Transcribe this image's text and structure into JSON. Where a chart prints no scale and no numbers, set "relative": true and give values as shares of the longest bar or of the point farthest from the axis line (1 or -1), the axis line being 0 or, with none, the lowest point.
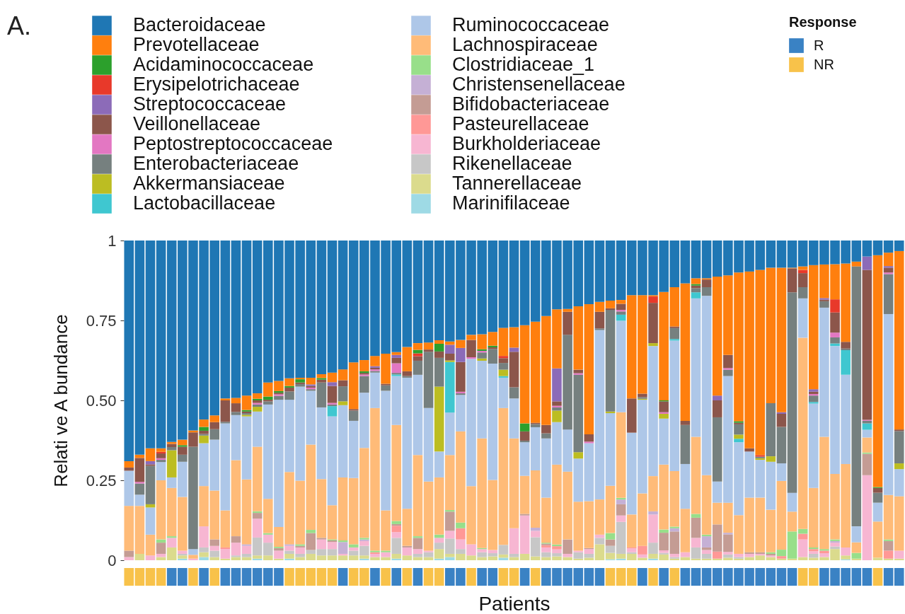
{
  "chart_data": [
    {
      "type": "bar",
      "title": "A.",
      "ylabel": "Relati ve A bundance",
      "stacked": true,
      "legend": "top",
      "tick_labels": "y",
      "ylim": [
        0,
        1
      ],
      "yticks": [
        0,
        0.25,
        {
          "value": 0.5,
          "label": "0.50"
        },
        0.75,
        1
      ],
      "categories": [
        null,
        null,
        null,
        null,
        null,
        null,
        null,
        null,
        null,
        null,
        null,
        null,
        null,
        null,
        null,
        null,
        null,
        null,
        null,
        null,
        null,
        null,
        null,
        null,
        null,
        null,
        null,
        null,
        null,
        null,
        null,
        null,
        null,
        null,
        null,
        null,
        null,
        null,
        null,
        null,
        null,
        null,
        null,
        null,
        null,
        null,
        null,
        null,
        null,
        null,
        null,
        null,
        null,
        null,
        null,
        null,
        null,
        null,
        null,
        null,
        null,
        null,
        null,
        null,
        null,
        null,
        null,
        null,
        null,
        null,
        null,
        null,
        null
      ],
      "series": [
        {
          "name": "Marinifilaceae",
          "color": "#9edae5",
          "values": [
            null,
            null,
            null,
            null,
            null,
            0.005,
            null,
            0.01,
            null,
            null,
            null,
            null,
            0.005,
            null,
            null,
            0.005,
            null,
            null,
            null,
            null,
            null,
            null,
            0.005,
            null,
            null,
            0.005,
            null,
            null,
            null,
            0.005,
            0.01,
            null,
            null,
            null,
            null,
            0.008,
            null,
            null,
            null,
            null,
            null,
            null,
            null,
            null,
            null,
            0.003,
            0.005,
            null,
            null,
            0.005,
            null,
            null,
            null,
            null,
            null,
            null,
            null,
            null,
            null,
            null,
            null,
            null,
            null,
            null,
            null,
            null,
            null,
            0.003,
            null,
            null,
            null,
            null,
            null
          ]
        },
        {
          "name": "Tannerellaceae",
          "color": "#dbdb8d",
          "values": [
            null,
            0.02,
            null,
            0.01,
            0.04,
            0.01,
            null,
            0.015,
            0.01,
            0.005,
            0.01,
            0.01,
            0.01,
            0.015,
            0.005,
            0.015,
            0.01,
            0.02,
            0.015,
            0.015,
            0.015,
            0.015,
            0.01,
            0.01,
            0.01,
            0.015,
            0.015,
            0.01,
            0.01,
            0.03,
            0.01,
            0.02,
            0.015,
            0.01,
            0.012,
            0.01,
            0.01,
            0.02,
            0.012,
            0.01,
            0.012,
            0.01,
            0.005,
            0.008,
            0.05,
            0.02,
            0.015,
            0.02,
            0.008,
            0.015,
            0.018,
            0.005,
            0.01,
            0.005,
            0.005,
            0.005,
            0.008,
            0.005,
            0.01,
            0.015,
            0.01,
            0.005,
            0.005,
            0.01,
            0.008,
            0.01,
            0.035,
            0.012,
            0.005,
            null,
            0.008,
            0.005,
            0.005
          ]
        },
        {
          "name": "Rikenellaceae",
          "color": "#c7c7c7",
          "values": [
            null,
            null,
            null,
            null,
            null,
            0.005,
            null,
            0.015,
            0.02,
            null,
            0.005,
            0.01,
            0.056,
            0.04,
            null,
            0.01,
            0.01,
            0.012,
            0.02,
            0.02,
            null,
            0.015,
            0.03,
            null,
            null,
            0.05,
            null,
            0.01,
            0.015,
            0.02,
            0.048,
            0.015,
            null,
            0.015,
            0.01,
            0.03,
            0.01,
            null,
            0.06,
            0.015,
            0.01,
            null,
            0.02,
            0.012,
            0.02,
            0.022,
            0.1,
            0.005,
            null,
            0.035,
            0.005,
            0.005,
            null,
            0.035,
            0.015,
            null,
            0.01,
            0.005,
            null,
            null,
            null,
            null,
            null,
            null,
            0.012,
            null,
            0.008,
            null,
            null,
            null,
            null,
            null,
            null
          ]
        },
        {
          "name": "Burkholderiaceae",
          "color": "#f7b6d2",
          "values": [
            0.01,
            null,
            0.015,
            0.01,
            0.03,
            0.01,
            0.005,
            0.066,
            0.015,
            0.03,
            0.04,
            0.025,
            0.059,
            0.025,
            0.025,
            0.015,
            0.02,
            null,
            0.03,
            0.022,
            0.005,
            0.01,
            0.015,
            0.01,
            0.015,
            0.018,
            0.025,
            0.015,
            0.005,
            0.015,
            0.024,
            0.03,
            0.035,
            0.01,
            0.01,
            null,
            0.08,
            0.12,
            0.02,
            0.015,
            0.012,
            0.01,
            0.005,
            0.015,
            0.01,
            null,
            0.02,
            0.012,
            0.01,
            0.088,
            0.008,
            0.01,
            0.015,
            0.03,
            0.012,
            null,
            0.008,
            0.01,
            0.01,
            0.005,
            0.005,
            null,
            null,
            0.055,
            0.008,
            0.012,
            0.012,
            0.025,
            null,
            0.266,
            null,
            null,
            0.025
          ]
        },
        {
          "name": "Pasteurellaceae",
          "color": "#ff9896",
          "values": [
            null,
            null,
            null,
            null,
            null,
            null,
            null,
            null,
            null,
            0.005,
            null,
            null,
            null,
            null,
            null,
            null,
            null,
            null,
            null,
            null,
            null,
            null,
            null,
            0.005,
            null,
            0.02,
            null,
            null,
            null,
            null,
            null,
            0.035,
            null,
            null,
            null,
            null,
            null,
            null,
            null,
            0.007,
            0.01,
            null,
            null,
            null,
            null,
            null,
            null,
            0.003,
            0.027,
            null,
            null,
            null,
            null,
            null,
            null,
            0.022,
            null,
            null,
            null,
            null,
            null,
            0.008,
            null,
            0.018,
            0.007,
            0.008,
            null,
            null,
            null,
            null,
            null,
            0.025,
            null
          ]
        },
        {
          "name": "Bifidobacteriaceae",
          "color": "#c49c94",
          "values": [
            0.02,
            null,
            null,
            0.035,
            null,
            null,
            null,
            null,
            0.02,
            null,
            0.02,
            null,
            0.018,
            null,
            0.008,
            null,
            0.005,
            0.053,
            0.005,
            0.005,
            null,
            null,
            null,
            null,
            null,
            0.005,
            0.005,
            0.035,
            null,
            null,
            0.06,
            null,
            null,
            null,
            null,
            null,
            null,
            0.005,
            null,
            0.005,
            null,
            0.045,
            null,
            0.003,
            null,
            0.02,
            0.035,
            null,
            null,
            null,
            0.055,
            0.07,
            null,
            0.063,
            0.008,
            0.085,
            0.055,
            null,
            0.005,
            0.005,
            0.005,
            null,
            null,
            null,
            null,
            null,
            null,
            null,
            null,
            0.067,
            null,
            0.03,
            null
          ]
        },
        {
          "name": "Christensenellaceae",
          "color": "#c5b0d5",
          "values": [
            null,
            null,
            null,
            null,
            null,
            null,
            null,
            null,
            null,
            null,
            null,
            0.005,
            null,
            null,
            null,
            0.005,
            null,
            null,
            null,
            null,
            0.037,
            null,
            0.005,
            null,
            null,
            null,
            null,
            null,
            null,
            null,
            null,
            null,
            null,
            null,
            null,
            null,
            null,
            null,
            0.01,
            null,
            null,
            null,
            null,
            null,
            null,
            null,
            0.015,
            null,
            null,
            0.01,
            null,
            0.01,
            null,
            null,
            0.035,
            null,
            0.005,
            null,
            null,
            null,
            null,
            null,
            null,
            null,
            null,
            null,
            0.005,
            null,
            null,
            null,
            null,
            null,
            null
          ]
        },
        {
          "name": "Clostridiaceae_1",
          "color": "#98df8a",
          "values": [
            null,
            null,
            null,
            0.01,
            0.005,
            null,
            null,
            null,
            null,
            null,
            null,
            null,
            0.005,
            0.005,
            0.004,
            null,
            0.005,
            0.01,
            null,
            0.003,
            0.005,
            0.01,
            0.005,
            0.005,
            0.005,
            0.01,
            null,
            0.005,
            null,
            0.01,
            0.005,
            0.018,
            null,
            0.003,
            null,
            null,
            null,
            null,
            null,
            0.003,
            0.005,
            null,
            null,
            null,
            null,
            0.02,
            0.005,
            null,
            null,
            null,
            0.01,
            0.005,
            null,
            0.012,
            0.005,
            null,
            null,
            null,
            null,
            null,
            0.005,
            0.02,
            0.085,
            0.015,
            0.005,
            0.005,
            0.005,
            null,
            0.018,
            0.004,
            null,
            0.005,
            null
          ]
        },
        {
          "name": "Lachnospiraceae",
          "color": "#ffbb78",
          "values": [
            0.14,
            0.15,
            0.065,
            0.185,
            0.151,
            0.168,
            0.012,
            0.126,
            0.153,
            0.116,
            0.238,
            0.203,
            0.202,
            0.107,
            0.062,
            0.226,
            0.199,
            0.267,
            0.184,
            0.107,
            0.197,
            0.207,
            0.281,
            0.446,
            0.126,
            0.3,
            0.116,
            0.254,
            0.216,
            0.179,
            0.172,
            0.285,
            0.182,
            0.343,
            0.219,
            0.428,
            0.281,
            0.119,
            0.179,
            0.141,
            0.25,
            0.212,
            0.153,
            0.147,
            0.11,
            0.148,
            0.268,
            0.103,
            0.164,
            0.11,
            0.203,
            0.174,
            0.136,
            0.241,
            0.186,
            0.068,
            0.094,
            0.121,
            0.171,
            0.171,
            0.133,
            0.215,
            0.062,
            0.598,
            0.186,
            0.351,
            0.205,
            0.261,
            0.033,
            0.047,
            0.113,
            0.139,
            0.17
          ]
        },
        {
          "name": "Ruminococcaceae",
          "color": "#aec7e8",
          "values": [
            0.11,
            0.035,
            0.085,
            0.057,
            0.033,
            0.11,
            0.018,
            0.134,
            0.159,
            0.272,
            0.141,
            0.197,
            0.11,
            0.295,
            0.398,
            0.226,
            0.294,
            0.168,
            0.224,
            0.278,
            0.226,
            0.179,
            0.173,
            0.111,
            0.374,
            0.153,
            0.41,
            0.251,
            0.23,
            0.081,
            0.133,
            0.114,
            0.398,
            0.243,
            0.364,
            0.095,
            0.125,
            0.105,
            0.135,
            0.185,
            0.133,
            0.132,
            0.135,
            0.181,
            0.53,
            0.227,
            0.286,
            0.256,
            0.293,
            0.407,
            0.144,
            0.408,
            0.14,
            0.433,
            0.561,
            0.066,
            0.396,
            0.228,
            0.144,
            0.118,
            0.15,
            0.055,
            0.059,
            0.123,
            0.264,
            0.404,
            0.4,
            0.279,
            0.05,
            0.024,
            0.059,
            0.566,
            0.085
          ]
        },
        {
          "name": "Lactobacillaceae",
          "color": "#3fc7d0",
          "values": [
            null,
            null,
            null,
            null,
            null,
            null,
            null,
            null,
            null,
            null,
            null,
            null,
            null,
            null,
            null,
            null,
            null,
            null,
            null,
            0.032,
            null,
            null,
            null,
            null,
            null,
            0.005,
            null,
            null,
            null,
            null,
            0.158,
            null,
            null,
            null,
            null,
            0.005,
            null,
            null,
            null,
            null,
            null,
            null,
            null,
            null,
            null,
            null,
            0.019,
            null,
            null,
            null,
            null,
            0.005,
            null,
            0.019,
            null,
            null,
            null,
            0.011,
            null,
            null,
            null,
            null,
            null,
            null,
            0.005,
            null,
            0.008,
            0.077,
            null,
            0.02,
            null,
            null,
            null
          ]
        },
        {
          "name": "Akkermansiaceae",
          "color": "#bcbd22",
          "values": [
            null,
            null,
            0.01,
            null,
            0.085,
            null,
            null,
            0.024,
            null,
            null,
            null,
            0.005,
            0.015,
            null,
            null,
            null,
            null,
            null,
            null,
            null,
            0.012,
            null,
            null,
            null,
            null,
            null,
            null,
            null,
            null,
            0.203,
            0.005,
            null,
            null,
            0.007,
            null,
            0.02,
            null,
            null,
            null,
            null,
            0.036,
            null,
            0.02,
            null,
            null,
            0.005,
            null,
            null,
            0.003,
            0.009,
            0.015,
            null,
            null,
            null,
            null,
            null,
            null,
            0.013,
            null,
            0.005,
            0.017,
            null,
            null,
            null,
            null,
            null,
            null,
            null,
            null,
            null,
            null,
            null,
            0.018
          ]
        },
        {
          "name": "Enterobacteriaceae",
          "color": "#76807f",
          "values": [
            null,
            0.035,
            0.12,
            0.007,
            0.01,
            0.022,
            0.32,
            0.005,
            0.033,
            0.005,
            0.01,
            0.005,
            0.007,
            0.01,
            0.012,
            0.026,
            0.008,
            0.005,
            0.078,
            0.005,
            0.047,
            0.032,
            0.052,
            0.005,
            0.017,
            0.005,
            0.005,
            0.044,
            0.176,
            0.09,
            null,
            0.005,
            null,
            0.019,
            0.046,
            0.021,
            0.035,
            0.005,
            0.01,
            0.016,
            0.01,
            0.296,
            0.242,
            null,
            0.005,
            0.318,
            0.01,
            null,
            0.005,
            null,
            null,
            0.034,
            0.122,
            0.013,
            0.027,
            0.201,
            0.02,
            0.032,
            null,
            0.005,
            0.166,
            0.114,
            0.627,
            0.035,
            0.02,
            0.02,
            0.019,
            0.005,
            0.813,
            0.008,
            0.031,
            0.125,
            0.101
          ]
        },
        {
          "name": "Peptostreptococcaceae",
          "color": "#e377c2",
          "values": [
            null,
            0.005,
            null,
            0.005,
            null,
            null,
            null,
            null,
            null,
            null,
            null,
            null,
            0.005,
            null,
            0.005,
            null,
            null,
            0.005,
            null,
            0.005,
            null,
            null,
            0.005,
            0.005,
            null,
            0.03,
            null,
            null,
            null,
            null,
            null,
            0.005,
            0.005,
            0.005,
            null,
            null,
            null,
            null,
            null,
            null,
            0.005,
            null,
            0.005,
            0.005,
            null,
            null,
            0.005,
            null,
            null,
            null,
            0.005,
            null,
            null,
            null,
            null,
            null,
            0.005,
            null,
            null,
            null,
            null,
            null,
            null,
            null,
            0.005,
            null,
            0.015,
            null,
            null,
            0.003,
            null,
            0.005,
            null
          ]
        },
        {
          "name": "Veillonellaceae",
          "color": "#8c564b",
          "values": [
            0.01,
            0.075,
            0.005,
            0.015,
            0.01,
            0.025,
            0.045,
            0.01,
            0.022,
            0.067,
            0.027,
            0.005,
            0.008,
            0.005,
            0.005,
            0.012,
            0.005,
            0.005,
            0.009,
            0.053,
            0.019,
            0.005,
            0.005,
            0.005,
            0.005,
            0.017,
            0.015,
            0.014,
            0.007,
            0.02,
            0.021,
            0.093,
            0.054,
            null,
            0.005,
            0.015,
            0.111,
            0.029,
            0.004,
            0.026,
            0.014,
            0.072,
            0.011,
            0.023,
            0.052,
            0.005,
            0.019,
            0.107,
            0.011,
            0.126,
            0.034,
            0.005,
            0.013,
            0.008,
            0.024,
            0.053,
            0.041,
            0.005,
            0.01,
            null,
            null,
            0.041,
            0.075,
            0.044,
            0.007,
            0.005,
            0.063,
            0.021,
            null,
            0.469,
            0.015,
            0.015,
            0.005
          ]
        },
        {
          "name": "Streptococcaceae",
          "color": "#8c6bb8",
          "values": [
            null,
            null,
            0.01,
            null,
            null,
            null,
            null,
            null,
            null,
            null,
            null,
            null,
            null,
            null,
            null,
            null,
            null,
            0.005,
            null,
            0.012,
            null,
            null,
            null,
            0.005,
            null,
            0.009,
            null,
            null,
            null,
            null,
            0.028,
            0.044,
            null,
            null,
            null,
            null,
            0.013,
            null,
            null,
            null,
            0.103,
            null,
            null,
            null,
            null,
            null,
            null,
            null,
            null,
            null,
            null,
            null,
            null,
            null,
            null,
            0.015,
            null,
            null,
            null,
            null,
            null,
            0.005,
            null,
            null,
            0.008,
            0.005,
            null,
            null,
            null,
            0.042,
            null,
            0.005,
            null
          ]
        },
        {
          "name": "Erysipelotrichaceae",
          "color": "#e8392a",
          "values": [
            null,
            null,
            null,
            0.005,
            null,
            null,
            null,
            null,
            null,
            null,
            null,
            null,
            null,
            null,
            null,
            null,
            null,
            null,
            null,
            null,
            null,
            null,
            null,
            null,
            null,
            null,
            null,
            0.009,
            null,
            null,
            null,
            null,
            null,
            null,
            null,
            0.007,
            null,
            null,
            null,
            null,
            null,
            null,
            null,
            null,
            null,
            null,
            null,
            null,
            null,
            0.02,
            null,
            null,
            null,
            null,
            null,
            null,
            null,
            null,
            null,
            0.005,
            null,
            null,
            null,
            0.01,
            null,
            null,
            0.041,
            null,
            null,
            null,
            null,
            null,
            null
          ]
        },
        {
          "name": "Acidaminococcaceae",
          "color": "#2ca02c",
          "values": [
            null,
            null,
            null,
            null,
            null,
            0.005,
            null,
            0.012,
            null,
            null,
            null,
            0.005,
            0.005,
            0.01,
            0.005,
            0.005,
            0.01,
            null,
            0.005,
            null,
            null,
            null,
            0.005,
            null,
            null,
            null,
            null,
            0.011,
            null,
            0.024,
            null,
            null,
            null,
            0.005,
            0.005,
            null,
            null,
            0.025,
            null,
            null,
            null,
            null,
            null,
            null,
            null,
            null,
            null,
            null,
            null,
            null,
            0.003,
            null,
            null,
            0.005,
            null,
            null,
            null,
            0.005,
            null,
            null,
            null,
            null,
            null,
            null,
            null,
            null,
            null,
            null,
            null,
            null,
            0.003,
            null,
            null
          ]
        },
        {
          "name": "Prevotellaceae",
          "color": "#ff7f0e",
          "values": [
            0.02,
            0.01,
            0.04,
            0.011,
            0.006,
            0.017,
            0.006,
            0.023,
            0.021,
            0.006,
            0.017,
            0.045,
            0.017,
            0.044,
            0.032,
            0.024,
            0.005,
            0.021,
            0.012,
            0.03,
            0.034,
            0.146,
            0.035,
            0.032,
            0.094,
            0.009,
            0.076,
            0.021,
            0.022,
            0.011,
            0.01,
            0.025,
            0.016,
            0.047,
            0.043,
            0.088,
            0.064,
            0.307,
            0.316,
            0.341,
            0.185,
            0.009,
            0.198,
            0.407,
            0.031,
            0.024,
            0.012,
            0.323,
            0.308,
            0.004,
            0.339,
            0.123,
            0.43,
            0.018,
            0.004,
            0.372,
            0.249,
            0.465,
            0.553,
            0.579,
            0.424,
            0.452,
            0.002,
            0.011,
            0.388,
            0.105,
            0.11,
            0.245,
            0.015,
            null,
            0.725,
            0.042,
            0.558
          ]
        },
        {
          "name": "Bacteroidaceae",
          "color": "#1f77b4",
          "values": [
            0.69,
            0.67,
            0.65,
            0.65,
            0.63,
            0.623,
            0.594,
            0.56,
            0.547,
            0.494,
            0.492,
            0.485,
            0.478,
            0.444,
            0.439,
            0.431,
            0.429,
            0.429,
            0.418,
            0.413,
            0.403,
            0.381,
            0.374,
            0.361,
            0.354,
            0.349,
            0.333,
            0.321,
            0.319,
            0.312,
            0.316,
            0.311,
            0.295,
            0.293,
            0.286,
            0.273,
            0.271,
            0.265,
            0.254,
            0.236,
            0.215,
            0.214,
            0.206,
            0.199,
            0.192,
            0.188,
            0.186,
            0.171,
            0.171,
            0.171,
            0.161,
            0.146,
            0.134,
            0.118,
            0.118,
            0.113,
            0.109,
            0.1,
            0.097,
            0.092,
            0.085,
            0.085,
            0.085,
            0.081,
            0.077,
            0.075,
            0.074,
            0.072,
            0.066,
            0.05,
            0.046,
            0.038,
            0.033
          ]
        }
      ]
    },
    {
      "type": "bar",
      "relative": true,
      "stacked": true,
      "xlabel": "Patients",
      "legend_title": "Response",
      "legend": "top right",
      "tick_labels": false,
      "categories": [
        null,
        null,
        null,
        null,
        null,
        null,
        null,
        null,
        null,
        null,
        null,
        null,
        null,
        null,
        null,
        null,
        null,
        null,
        null,
        null,
        null,
        null,
        null,
        null,
        null,
        null,
        null,
        null,
        null,
        null,
        null,
        null,
        null,
        null,
        null,
        null,
        null,
        null,
        null,
        null,
        null,
        null,
        null,
        null,
        null,
        null,
        null,
        null,
        null,
        null,
        null,
        null,
        null,
        null,
        null,
        null,
        null,
        null,
        null,
        null,
        null,
        null,
        null,
        null,
        null,
        null,
        null,
        null,
        null,
        null,
        null,
        null,
        null
      ],
      "series": [
        {
          "name": "NR",
          "color": "#f8c24a",
          "values": [
            1,
            1,
            1,
            1,
            null,
            null,
            1,
            null,
            1,
            null,
            null,
            null,
            null,
            null,
            null,
            1,
            1,
            1,
            1,
            1,
            null,
            1,
            1,
            null,
            1,
            null,
            1,
            null,
            1,
            1,
            null,
            null,
            1,
            null,
            null,
            1,
            1,
            null,
            1,
            null,
            null,
            null,
            null,
            null,
            null,
            1,
            1,
            1,
            null,
            1,
            null,
            1,
            null,
            null,
            null,
            null,
            null,
            null,
            null,
            null,
            null,
            null,
            null,
            1,
            1,
            null,
            null,
            null,
            null,
            null,
            1,
            null,
            null
          ]
        },
        {
          "name": "R",
          "color": "#3a82c4",
          "values": [
            null,
            null,
            null,
            null,
            1,
            1,
            null,
            1,
            null,
            1,
            1,
            1,
            1,
            1,
            1,
            null,
            null,
            null,
            null,
            null,
            1,
            null,
            null,
            1,
            null,
            1,
            null,
            1,
            null,
            null,
            1,
            1,
            null,
            1,
            1,
            null,
            null,
            1,
            null,
            1,
            1,
            1,
            1,
            1,
            1,
            null,
            null,
            null,
            1,
            null,
            1,
            null,
            1,
            1,
            1,
            1,
            1,
            1,
            1,
            1,
            1,
            1,
            1,
            null,
            null,
            1,
            1,
            1,
            1,
            1,
            null,
            1,
            1
          ]
        }
      ]
    }
  ]
}
